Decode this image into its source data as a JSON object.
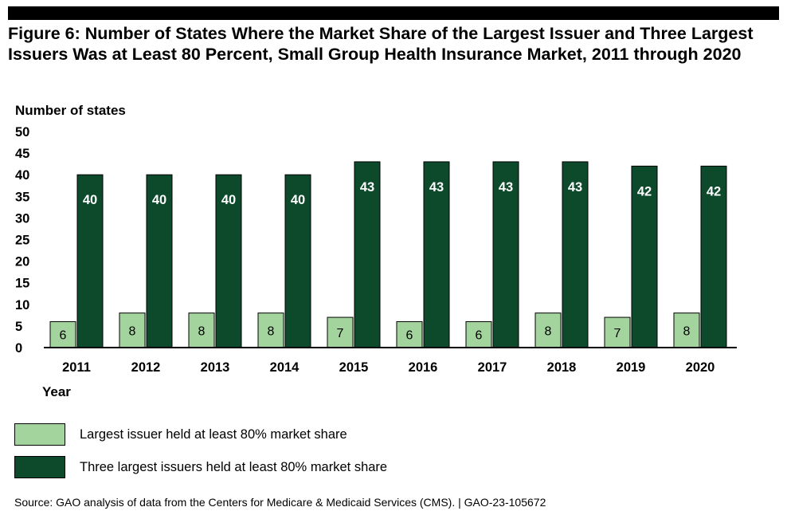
{
  "figure": {
    "title": "Figure 6: Number of States Where the Market Share of the Largest Issuer and Three Largest Issuers Was at Least 80 Percent, Small Group Health Insurance Market, 2011 through 2020",
    "source": "Source: GAO analysis of data from the Centers for Medicare & Medicaid Services (CMS).  |  GAO-23-105672"
  },
  "colors": {
    "largest": "#a3d49d",
    "three_largest": "#0d4a2c",
    "axis": "#000000"
  },
  "chart_data": {
    "type": "bar",
    "title": "Figure 6: Number of States Where the Market Share of the Largest Issuer and Three Largest Issuers Was at Least 80 Percent, Small Group Health Insurance Market, 2011 through 2020",
    "xlabel": "Year",
    "ylabel": "Number of states",
    "ylim": [
      0,
      50
    ],
    "yticks": [
      "0",
      "5",
      "10",
      "15",
      "20",
      "25",
      "30",
      "35",
      "40",
      "45",
      "50"
    ],
    "categories": [
      "2011",
      "2012",
      "2013",
      "2014",
      "2015",
      "2016",
      "2017",
      "2018",
      "2019",
      "2020"
    ],
    "series": [
      {
        "name": "Largest issuer held at least 80% market share",
        "values": [
          6,
          8,
          8,
          8,
          7,
          6,
          6,
          8,
          7,
          8
        ]
      },
      {
        "name": "Three largest issuers held at least 80% market share",
        "values": [
          40,
          40,
          40,
          40,
          43,
          43,
          43,
          43,
          42,
          42
        ]
      }
    ],
    "grid": false,
    "legend": "bottom-left"
  }
}
